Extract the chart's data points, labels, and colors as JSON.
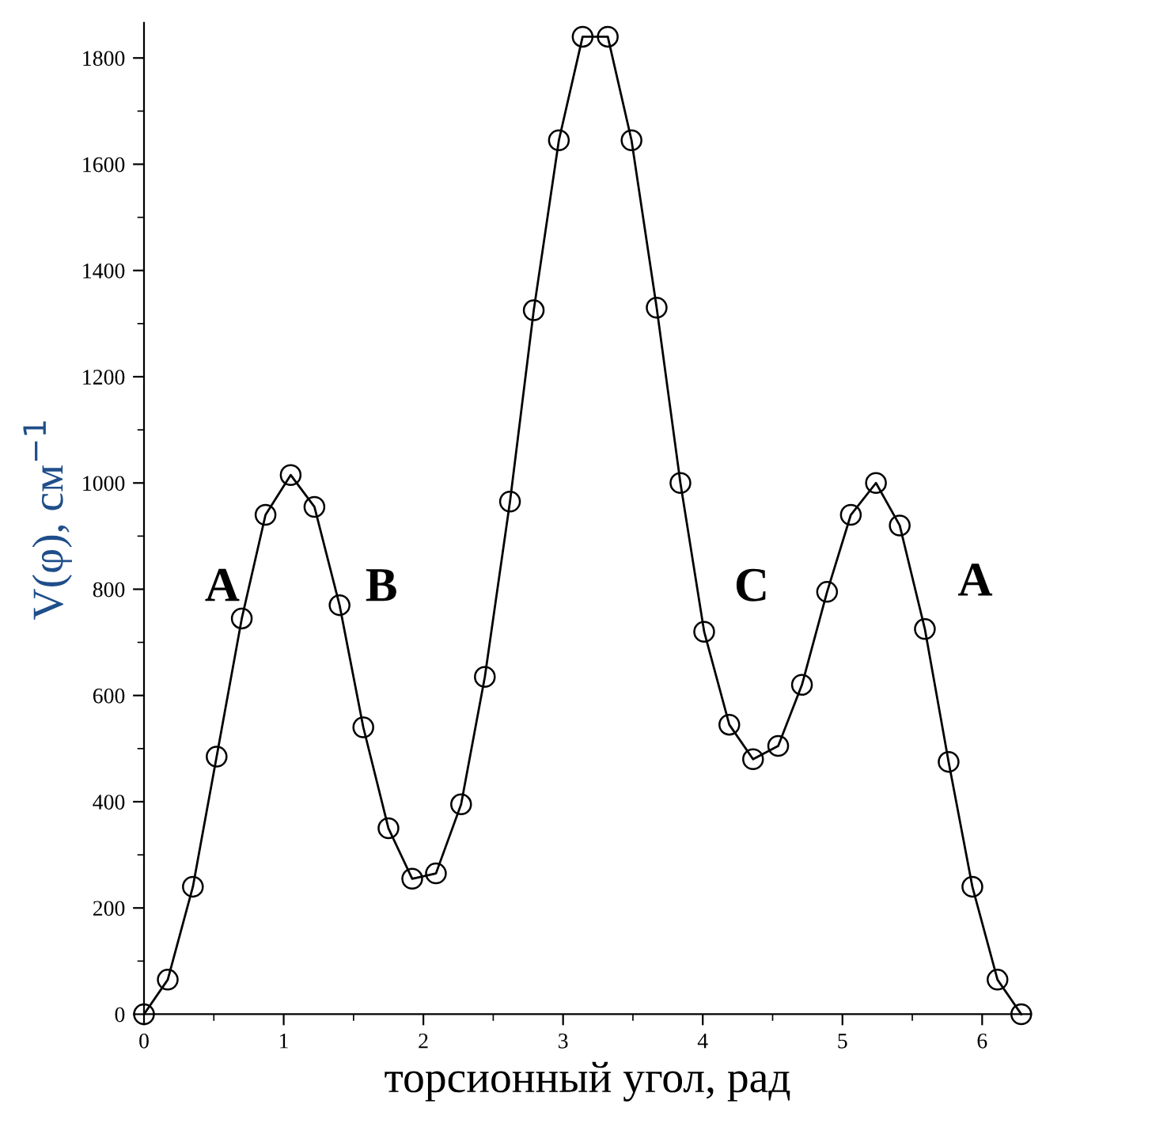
{
  "chart_data": {
    "type": "line",
    "xlabel": "торсионный угол, рад",
    "ylabel": "V(φ), см$^{−1}$",
    "x": [
      0,
      0.17,
      0.35,
      0.52,
      0.7,
      0.87,
      1.05,
      1.22,
      1.4,
      1.57,
      1.75,
      1.92,
      2.09,
      2.27,
      2.44,
      2.62,
      2.79,
      2.97,
      3.14,
      3.32,
      3.49,
      3.67,
      3.84,
      4.01,
      4.19,
      4.36,
      4.54,
      4.71,
      4.89,
      5.06,
      5.24,
      5.41,
      5.59,
      5.76,
      5.93,
      6.11,
      6.28
    ],
    "series": [
      {
        "color": "#000000",
        "values": [
          0,
          65,
          240,
          485,
          745,
          940,
          1015,
          955,
          770,
          540,
          350,
          255,
          265,
          395,
          635,
          965,
          1325,
          1645,
          1840,
          1840,
          1645,
          1330,
          1000,
          720,
          545,
          480,
          505,
          620,
          795,
          940,
          1000,
          920,
          725,
          475,
          240,
          65,
          0
        ]
      }
    ],
    "annotations": [
      "A",
      "B",
      "C",
      "A"
    ],
    "xlim": [
      0,
      6.35
    ],
    "ylim": [
      0,
      1866
    ],
    "xticks": [
      0,
      1,
      2,
      3,
      4,
      5,
      6
    ],
    "yticks": [
      0,
      200,
      400,
      600,
      800,
      1000,
      1200,
      1400,
      1600,
      1800
    ],
    "marker": "circle",
    "line_style": "solid",
    "grid": false,
    "legend": false
  }
}
